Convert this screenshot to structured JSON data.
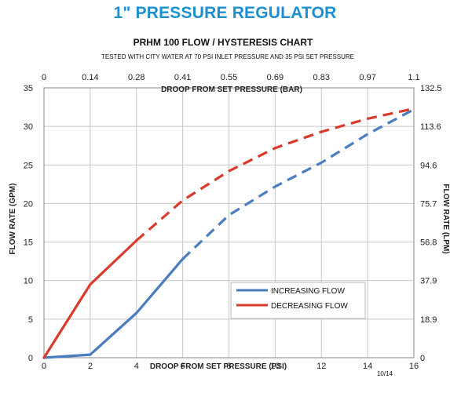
{
  "header": {
    "title": "1\" PRESSURE REGULATOR"
  },
  "footer": {
    "code": "10/14"
  },
  "colors": {
    "increasing": "#4a7dbf",
    "decreasing": "#d93a2b",
    "header": "#1b8fd1",
    "grid": "#c8c8c8"
  },
  "chart_data": {
    "type": "line",
    "title": "PRHM 100 FLOW / HYSTERESIS CHART",
    "subtitle": "TESTED WITH CITY WATER AT 70 PSI INLET PRESSURE AND 35 PSI SET PRESSURE",
    "xlabel": "DROOP FROM SET PRESSURE (PSI)",
    "x2label": "DROOP FROM SET PRESSURE (BAR)",
    "ylabel": "FLOW RATE (GPM)",
    "y2label": "FLOW RATE (LPM)",
    "xlim": [
      0,
      16
    ],
    "ylim": [
      0,
      35
    ],
    "x_ticks": [
      0,
      2,
      4,
      6,
      8,
      10,
      12,
      14,
      16
    ],
    "y_ticks": [
      0,
      5,
      10,
      15,
      20,
      25,
      30,
      35
    ],
    "x2_ticks": [
      "0",
      "0.14",
      "0.28",
      "0.41",
      "0.55",
      "0.69",
      "0.83",
      "0.97",
      "1.1"
    ],
    "y2_ticks": [
      "0",
      "18.9",
      "37.9",
      "56.8",
      "75.7",
      "94.6",
      "113.6",
      "132.5"
    ],
    "grid": true,
    "legend_position": "bottom-right",
    "series": [
      {
        "name": "INCREASING FLOW",
        "solid": [
          [
            0,
            0
          ],
          [
            2,
            0.4
          ],
          [
            4,
            5.8
          ],
          [
            6,
            12.8
          ]
        ],
        "dashed": [
          [
            6,
            12.8
          ],
          [
            8,
            18.5
          ],
          [
            10,
            22.2
          ],
          [
            12,
            25.3
          ],
          [
            14,
            29
          ],
          [
            16,
            32.2
          ]
        ]
      },
      {
        "name": "DECREASING FLOW",
        "solid": [
          [
            0,
            0
          ],
          [
            2,
            9.5
          ],
          [
            4,
            15.2
          ]
        ],
        "dashed": [
          [
            4,
            15.2
          ],
          [
            6,
            20.4
          ],
          [
            8,
            24.2
          ],
          [
            10,
            27.2
          ],
          [
            12,
            29.3
          ],
          [
            14,
            31
          ],
          [
            16,
            32.3
          ]
        ]
      }
    ]
  }
}
